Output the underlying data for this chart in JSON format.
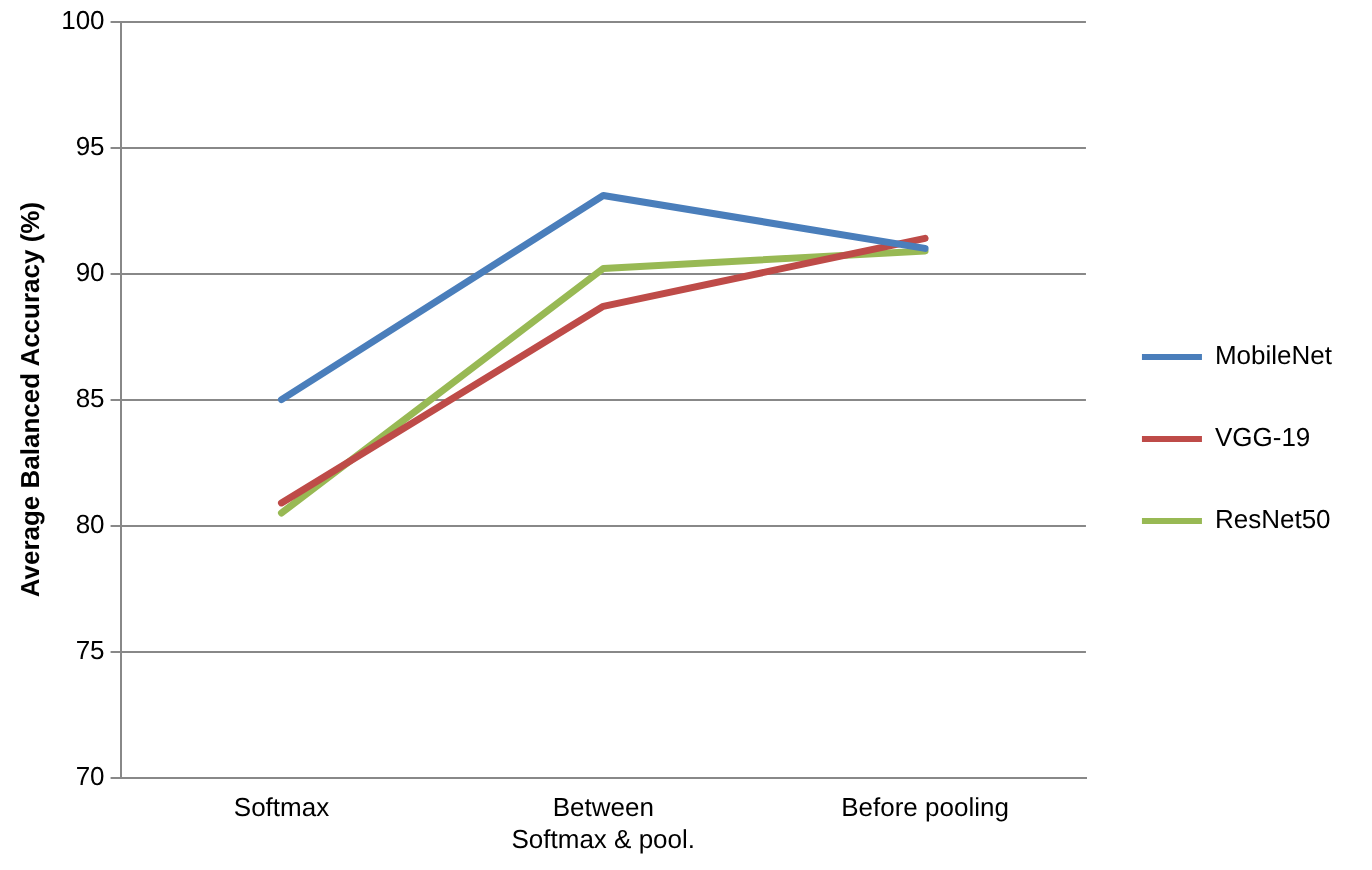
{
  "chart_data": {
    "type": "line",
    "ylabel": "Average Balanced Accuracy (%)",
    "categories": [
      "Softmax",
      "Between\nSoftmax & pool.",
      "Before pooling"
    ],
    "series": [
      {
        "name": "MobileNet",
        "color": "#4a7ebb",
        "values": [
          85.0,
          93.1,
          91.0
        ]
      },
      {
        "name": "VGG-19",
        "color": "#be4b48",
        "values": [
          80.9,
          88.7,
          91.4
        ]
      },
      {
        "name": "ResNet50",
        "color": "#98b954",
        "values": [
          80.5,
          90.2,
          90.9
        ]
      }
    ],
    "ylim": [
      70,
      100
    ],
    "yticks": [
      70,
      75,
      80,
      85,
      90,
      95,
      100
    ],
    "grid": "y",
    "legend": "right",
    "marker": "none"
  }
}
